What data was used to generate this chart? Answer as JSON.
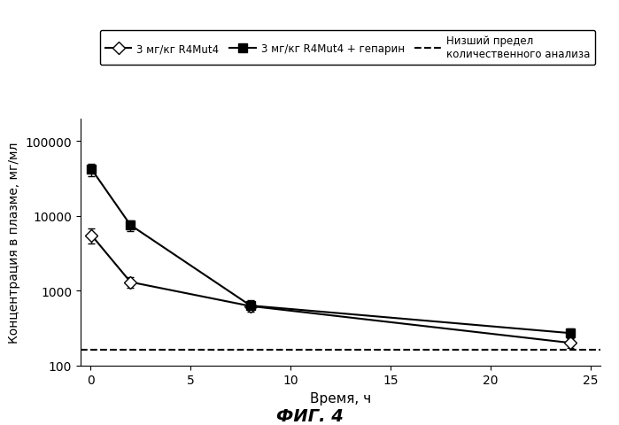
{
  "series1": {
    "label": "3 мг/кг R4Mut4",
    "x": [
      0.05,
      2,
      8,
      24
    ],
    "y": [
      5500,
      1300,
      620,
      200
    ],
    "yerr_low": [
      1200,
      200,
      75,
      30
    ],
    "yerr_high": [
      1200,
      200,
      75,
      30
    ],
    "marker": "D",
    "color": "black",
    "markerfacecolor": "white",
    "markersize": 7,
    "linewidth": 1.5
  },
  "series2": {
    "label": "3 мг/кг R4Mut4 + гепарин",
    "x": [
      0.05,
      2,
      8,
      24
    ],
    "y": [
      42000,
      7500,
      630,
      270
    ],
    "yerr_low": [
      8000,
      1200,
      110,
      40
    ],
    "yerr_high": [
      8000,
      1200,
      110,
      40
    ],
    "marker": "s",
    "color": "black",
    "markerfacecolor": "black",
    "markersize": 7,
    "linewidth": 1.5
  },
  "dashed_line": {
    "y": 160,
    "label": "Низший предел\nколичественного анализа",
    "color": "black",
    "linestyle": "--",
    "linewidth": 1.5
  },
  "xlabel": "Время, ч",
  "ylabel": "Концентрация в плазме, мг/мл",
  "ylim": [
    100,
    200000
  ],
  "xlim": [
    -0.5,
    25.5
  ],
  "xticks": [
    0,
    5,
    10,
    15,
    20,
    25
  ],
  "yticks": [
    100,
    1000,
    10000,
    100000
  ],
  "ytick_labels": [
    "100",
    "1000",
    "10000",
    "100000"
  ],
  "caption": "ФИГ. 4",
  "background_color": "#ffffff",
  "figsize": [
    6.99,
    4.81
  ],
  "dpi": 100
}
